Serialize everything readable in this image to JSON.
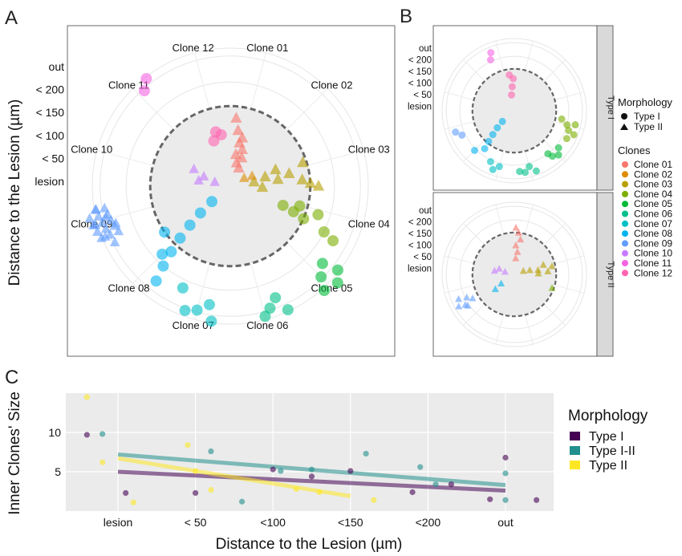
{
  "panels": {
    "a": "A",
    "b": "B",
    "c": "C"
  },
  "radial_ticks": [
    "lesion",
    "< 50",
    "< 100",
    "< 150",
    "< 200",
    "out"
  ],
  "radial_axis_title": "Distance to the Lesion (µm)",
  "clones": [
    "Clone 01",
    "Clone 02",
    "Clone 03",
    "Clone 04",
    "Clone 05",
    "Clone 06",
    "Clone 07",
    "Clone 08",
    "Clone 09",
    "Clone 10",
    "Clone 11",
    "Clone 12"
  ],
  "clone_colors": [
    "#F8766D",
    "#DE8C00",
    "#B79F00",
    "#7CAE00",
    "#00BA38",
    "#00C08B",
    "#00BFC4",
    "#00B4F0",
    "#619CFF",
    "#C77CFF",
    "#F564E3",
    "#FF64B0"
  ],
  "facets": [
    "Type I",
    "Type II"
  ],
  "legend_b": {
    "morph_title": "Morphology",
    "morph_items": [
      "Type I",
      "Type II"
    ],
    "clones_title": "Clones"
  },
  "legend_c": {
    "title": "Morphology",
    "items": [
      "Type I",
      "Type I-II",
      "Type II"
    ],
    "colors": [
      "#440154",
      "#21908C",
      "#FDE725"
    ]
  },
  "chart_data": [
    {
      "type": "scatter",
      "panel": "A",
      "coordinate_system": "polar",
      "theta_categories": [
        "Clone 01",
        "Clone 02",
        "Clone 03",
        "Clone 04",
        "Clone 05",
        "Clone 06",
        "Clone 07",
        "Clone 08",
        "Clone 09",
        "Clone 10",
        "Clone 11",
        "Clone 12"
      ],
      "r_categories": [
        "lesion",
        "< 50",
        "< 100",
        "< 150",
        "< 200",
        "out"
      ],
      "ylabel": "Distance to the Lesion (µm)",
      "series": [
        {
          "name": "Clone 01",
          "shape": "triangle",
          "points": [
            [
              0,
              0.3
            ],
            [
              0,
              0.7
            ],
            [
              0,
              1.1
            ],
            [
              0,
              1.4
            ],
            [
              0,
              1.8
            ],
            [
              0,
              2.1
            ]
          ]
        },
        {
          "name": "Clone 02",
          "shape": "triangle",
          "points": [
            [
              0,
              0.4
            ],
            [
              0,
              0.9
            ],
            [
              0,
              1.2
            ]
          ]
        },
        {
          "name": "Clone 03",
          "shape": "triangle",
          "points": [
            [
              0,
              0.7
            ],
            [
              0,
              1.1
            ],
            [
              0,
              1.5
            ],
            [
              0,
              1.9
            ],
            [
              0,
              2.3
            ],
            [
              0,
              2.6
            ],
            [
              0,
              2.1
            ],
            [
              0,
              1.3
            ]
          ]
        },
        {
          "name": "Clone 04",
          "shape": "circle",
          "points": [
            [
              0,
              2.9
            ],
            [
              0,
              3.2
            ],
            [
              0,
              3.5
            ],
            [
              0,
              3.8
            ],
            [
              0,
              4.1
            ],
            [
              0,
              4.6
            ]
          ]
        },
        {
          "name": "Clone 05",
          "shape": "circle",
          "points": [
            [
              0,
              4.2
            ],
            [
              0,
              4.5
            ],
            [
              0,
              4.7
            ],
            [
              0,
              5.0
            ]
          ]
        },
        {
          "name": "Clone 06",
          "shape": "circle",
          "points": [
            [
              0,
              4.8
            ],
            [
              0,
              5.0
            ],
            [
              0,
              5.2
            ],
            [
              0,
              5.4
            ]
          ]
        },
        {
          "name": "Clone 07",
          "shape": "circle",
          "points": [
            [
              0,
              4.5
            ],
            [
              0,
              4.8
            ],
            [
              0,
              5.1
            ]
          ]
        },
        {
          "name": "Clone 08",
          "shape": "circle",
          "points": [
            [
              0,
              1.0
            ],
            [
              0,
              1.6
            ],
            [
              0,
              2.3
            ],
            [
              0,
              3.0
            ],
            [
              0,
              3.5
            ],
            [
              0,
              4.0
            ],
            [
              0,
              4.4
            ]
          ]
        },
        {
          "name": "Clone 09",
          "shape": "triangle",
          "points": [
            [
              0,
              4.5
            ],
            [
              0,
              4.8
            ],
            [
              0,
              5.0
            ],
            [
              0,
              5.2
            ]
          ]
        },
        {
          "name": "Clone 10",
          "shape": "triangle",
          "points": [
            [
              0,
              0.3
            ],
            [
              0,
              0.6
            ],
            [
              0,
              0.9
            ]
          ]
        },
        {
          "name": "Clone 11",
          "shape": "circle",
          "points": [
            [
              0,
              5.2
            ],
            [
              0,
              5.4
            ]
          ]
        },
        {
          "name": "Clone 12",
          "shape": "circle",
          "points": [
            [
              0,
              2.0
            ],
            [
              0,
              2.3
            ]
          ]
        }
      ]
    },
    {
      "type": "scatter",
      "panel": "B",
      "coordinate_system": "polar",
      "facets": [
        "Type I",
        "Type II"
      ],
      "r_categories": [
        "lesion",
        "< 50",
        "< 100",
        "< 150",
        "< 200",
        "out"
      ]
    },
    {
      "type": "scatter",
      "panel": "C",
      "xlabel": "Distance to the Lesion (µm)",
      "ylabel": "Inner Clones' Size",
      "categories": [
        "lesion",
        "< 50",
        "<100",
        "<150",
        "<200",
        "out"
      ],
      "ylim": [
        0,
        15
      ],
      "yticks": [
        5,
        10
      ],
      "series": [
        {
          "name": "Type I",
          "color": "#440154",
          "points": [
            [
              -0.4,
              9.7
            ],
            [
              0.1,
              2.3
            ],
            [
              1.0,
              2.3
            ],
            [
              2.0,
              5.3
            ],
            [
              2.5,
              4.4
            ],
            [
              3.0,
              5.1
            ],
            [
              3.8,
              2.4
            ],
            [
              4.3,
              3.4
            ],
            [
              4.8,
              1.5
            ],
            [
              5.0,
              6.8
            ],
            [
              5.4,
              1.4
            ]
          ],
          "trend": [
            [
              0,
              5.0
            ],
            [
              5,
              2.6
            ]
          ]
        },
        {
          "name": "Type I-II",
          "color": "#21908C",
          "points": [
            [
              -0.2,
              9.8
            ],
            [
              1.2,
              7.6
            ],
            [
              1.6,
              1.2
            ],
            [
              2.1,
              5.1
            ],
            [
              2.5,
              5.3
            ],
            [
              3.2,
              7.3
            ],
            [
              3.9,
              5.6
            ],
            [
              4.1,
              3.4
            ],
            [
              5.0,
              4.8
            ],
            [
              5.0,
              1.4
            ]
          ],
          "trend": [
            [
              0,
              7.2
            ],
            [
              5,
              3.3
            ]
          ]
        },
        {
          "name": "Type II",
          "color": "#FDE725",
          "points": [
            [
              -0.4,
              14.5
            ],
            [
              -0.2,
              6.2
            ],
            [
              0.2,
              1.1
            ],
            [
              0.9,
              8.4
            ],
            [
              1.0,
              5.1
            ],
            [
              1.2,
              2.7
            ],
            [
              2.3,
              2.8
            ],
            [
              2.6,
              2.4
            ],
            [
              3.3,
              1.4
            ]
          ],
          "trend": [
            [
              0,
              6.7
            ],
            [
              3,
              1.9
            ]
          ]
        }
      ]
    }
  ]
}
